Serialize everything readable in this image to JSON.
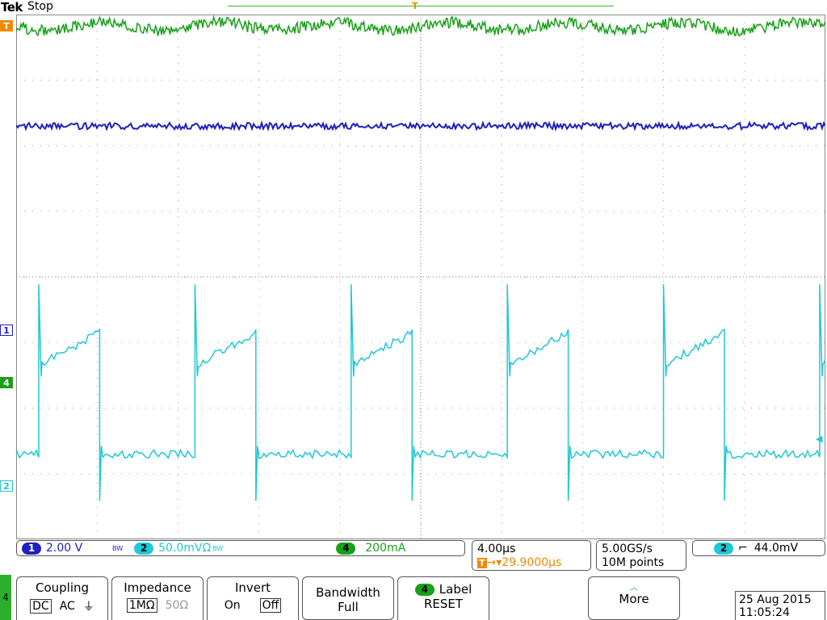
{
  "header": {
    "brand": "Tek",
    "acquisition_state": "Stop",
    "trigger_marker": "T"
  },
  "markers": {
    "trigger": "T",
    "ch1": "1",
    "ch4": "4",
    "ch2": "2"
  },
  "colors": {
    "ch1": "#2020c0",
    "ch2": "#1fc8d6",
    "ch4": "#19a019",
    "trigger": "#f08a00",
    "grid": "#9a9a9a"
  },
  "readout": {
    "ch1": {
      "num": "1",
      "scale": "2.00 V",
      "bw_tag": "BW"
    },
    "ch2": {
      "num": "2",
      "scale": "50.0mVΩ",
      "bw_tag": "BW"
    },
    "ch4": {
      "num": "4",
      "scale": "200mA"
    },
    "timebase": "4.00µs",
    "trigger_offset": "29.9000µs",
    "trigger_tag": "T",
    "sample_rate": "5.00GS/s",
    "record_length": "10M points",
    "trigger_source": "2",
    "trigger_slope": "⌐",
    "trigger_level": "44.0mV"
  },
  "menu": {
    "channel_tab": "4",
    "coupling": {
      "title": "Coupling",
      "options": [
        "DC",
        "AC",
        "⏚"
      ],
      "selected": "DC"
    },
    "impedance": {
      "title": "Impedance",
      "options": [
        "1MΩ",
        "50Ω"
      ],
      "selected": "1MΩ"
    },
    "invert": {
      "title": "Invert",
      "options": [
        "On",
        "Off"
      ],
      "selected": "Off"
    },
    "bandwidth": {
      "title": "Bandwidth",
      "value": "Full"
    },
    "label": {
      "channel": "4",
      "title": "Label",
      "value": "RESET"
    },
    "more": "More"
  },
  "datetime": {
    "date": "25 Aug 2015",
    "time": "11:05:24"
  },
  "chart_data": {
    "type": "line",
    "title": "",
    "grid": true,
    "xlabel": "",
    "ylabel": "",
    "timebase_per_div": "4.00µs",
    "divisions": {
      "horizontal": 10,
      "vertical": 8
    },
    "series": [
      {
        "name": "1",
        "kind": "flat",
        "level_div": 2.3,
        "note_values": []
      },
      {
        "name": "4",
        "kind": "ripple",
        "level_div": 3.82,
        "ripple_amplitude_div": 0.12
      },
      {
        "name": "2",
        "kind": "square",
        "high_div": -1.0,
        "low_div": -2.7,
        "period_div": 1.93
      }
    ]
  }
}
